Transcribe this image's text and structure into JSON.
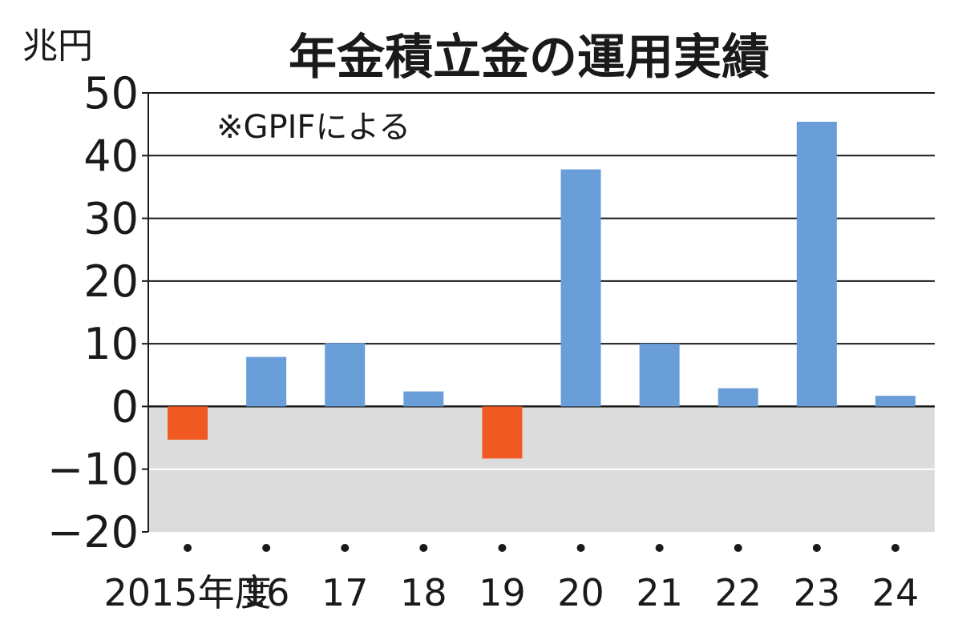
{
  "chart_data": {
    "type": "bar",
    "title": "年金積立金の運用実績",
    "unit": "兆円",
    "note": "※GPIFによる",
    "categories": [
      "2015年度",
      "16",
      "17",
      "18",
      "19",
      "20",
      "21",
      "22",
      "23",
      "24"
    ],
    "values": [
      -5.3,
      7.9,
      10.1,
      2.4,
      -8.3,
      37.8,
      10.0,
      2.9,
      45.4,
      1.7
    ],
    "ylim": [
      -20,
      50
    ],
    "yticks": [
      50,
      40,
      30,
      20,
      10,
      0,
      -10,
      -20
    ],
    "ytick_labels": [
      "50",
      "40",
      "30",
      "20",
      "10",
      "0",
      "−10",
      "−20"
    ],
    "xlabel": "",
    "ylabel": "",
    "grid": true,
    "colors": {
      "positive": "#6a9ed8",
      "negative": "#f05a22",
      "negative_region": "#dcdcdc",
      "gridline": "#1a1a1a"
    }
  }
}
